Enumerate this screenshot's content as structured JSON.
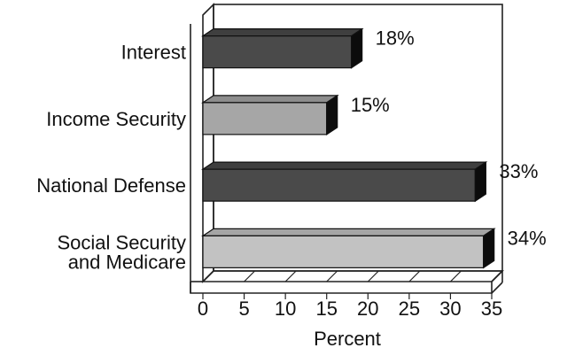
{
  "chart_data": {
    "type": "bar",
    "orientation": "horizontal",
    "style": "3d",
    "categories": [
      [
        "Interest"
      ],
      [
        "Income Security"
      ],
      [
        "National Defense"
      ],
      [
        "Social Security",
        "and Medicare"
      ]
    ],
    "values": [
      18,
      15,
      33,
      34
    ],
    "data_labels": [
      "18%",
      "15%",
      "33%",
      "34%"
    ],
    "bar_colors": [
      "#4a4a4a",
      "#a6a6a6",
      "#4a4a4a",
      "#c2c2c2"
    ],
    "xlabel": "Percent",
    "xlim": [
      0,
      35
    ],
    "xticks": [
      "0",
      "5",
      "10",
      "15",
      "20",
      "25",
      "30",
      "35"
    ],
    "grid": false,
    "legend": false
  }
}
